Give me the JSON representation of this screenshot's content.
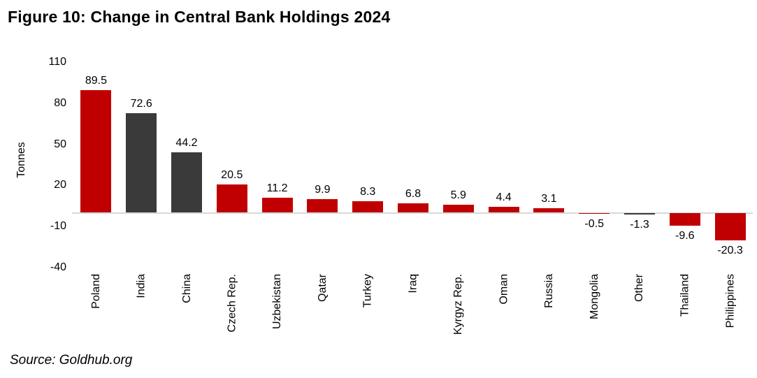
{
  "title": "Figure 10: Change in Central Bank Holdings 2024",
  "source": "Source: Goldhub.org",
  "chart_data": {
    "type": "bar",
    "title": "Figure 10: Change in Central Bank Holdings 2024",
    "xlabel": "",
    "ylabel": "Tonnes",
    "categories": [
      "Poland",
      "India",
      "China",
      "Czech Rep.",
      "Uzbekistan",
      "Qatar",
      "Turkey",
      "Iraq",
      "Kyrgyz Rep.",
      "Oman",
      "Russia",
      "Mongolia",
      "Other",
      "Thailand",
      "Philippines"
    ],
    "values": [
      89.5,
      72.6,
      44.2,
      20.5,
      11.2,
      9.9,
      8.3,
      6.8,
      5.9,
      4.4,
      3.1,
      -0.5,
      -1.3,
      -9.6,
      -20.3
    ],
    "bar_colors": [
      "#C00000",
      "#3A3A3A",
      "#3A3A3A",
      "#C00000",
      "#C00000",
      "#C00000",
      "#C00000",
      "#C00000",
      "#C00000",
      "#C00000",
      "#C00000",
      "#C00000",
      "#3A3A3A",
      "#C00000",
      "#C00000"
    ],
    "yticks": [
      110,
      80,
      50,
      20,
      -10,
      -40
    ],
    "ylim": [
      -40,
      110
    ],
    "grid": false,
    "value_labels": true,
    "legend": "none",
    "colors": {
      "primary_red": "#C00000",
      "dark_gray": "#3A3A3A",
      "axis_line": "#D9D9D9",
      "text": "#000000"
    },
    "source_note": "Source: Goldhub.org"
  }
}
